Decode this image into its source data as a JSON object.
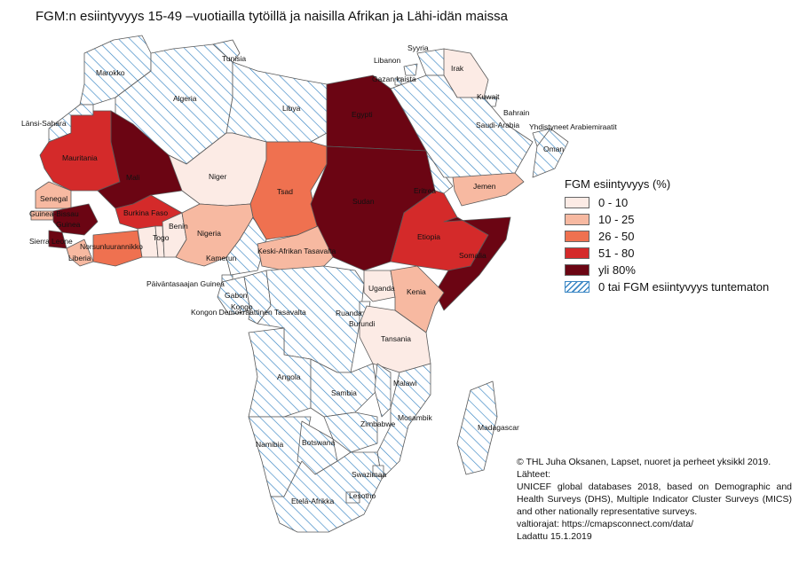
{
  "title": "FGM:n esiintyvyys 15-49 –vuotiailla tytöillä ja naisilla Afrikan ja Lähi-idän maissa",
  "legend": {
    "title": "FGM esiintyvyys (%)",
    "items": [
      {
        "label": "0 - 10",
        "color": "#fcebe5"
      },
      {
        "label": "10 - 25",
        "color": "#f7b9a1"
      },
      {
        "label": "26 - 50",
        "color": "#ef7150"
      },
      {
        "label": "51 - 80",
        "color": "#d42a2a"
      },
      {
        "label": "yli 80%",
        "color": "#6b0513"
      },
      {
        "label": "0 tai FGM esiintyvyys tuntematon",
        "color": "hatch"
      }
    ]
  },
  "colors": {
    "hatch_line": "#3a86c4",
    "border": "#5a5a5a",
    "sea": "#ffffff"
  },
  "country_labels": [
    "Marokko",
    "Tunisia",
    "Algeria",
    "Libya",
    "Länsi-Sahara",
    "Mauritania",
    "Mali",
    "Niger",
    "Tsad",
    "Egypti",
    "Sudan",
    "Eritrea",
    "Etiopia",
    "Somalia",
    "Senegal",
    "Guinea-Bissau",
    "Guinea",
    "Sierra Leone",
    "Liberia",
    "Norsunluurannikko",
    "Burkina Faso",
    "Togo",
    "Benin",
    "Nigeria",
    "Kamerun",
    "Keski-Afrikan Tasavalta",
    "Päiväntasaajan Guinea",
    "Gabon",
    "Kongo",
    "Kongon Demokraattinen Tasavalta",
    "Uganda",
    "Kenia",
    "Ruanda",
    "Burundi",
    "Tansania",
    "Angola",
    "Sambia",
    "Malawi",
    "Mosambik",
    "Zimbabwe",
    "Madagascar",
    "Namibia",
    "Botswana",
    "Swazimaa",
    "Lesotho",
    "Etelä-Afrikka",
    "Syyria",
    "Libanon",
    "Gazan kaista",
    "Irak",
    "Kuwait",
    "Bahrain",
    "Saudi-Arabia",
    "Yhdistyneet Arabiemiraatit",
    "Oman",
    "Jemen"
  ],
  "footer": [
    "© THL Juha Oksanen, Lapset, nuoret ja perheet yksikkl 2019.",
    "Lähteet:",
    "UNICEF global databases 2018, based on Demographic and Health Surveys (DHS), Multiple Indicator Cluster Surveys (MICS) and other nationally representative surveys.",
    "valtiorajat: https://cmapsconnect.com/data/",
    "Ladattu 15.1.2019"
  ]
}
